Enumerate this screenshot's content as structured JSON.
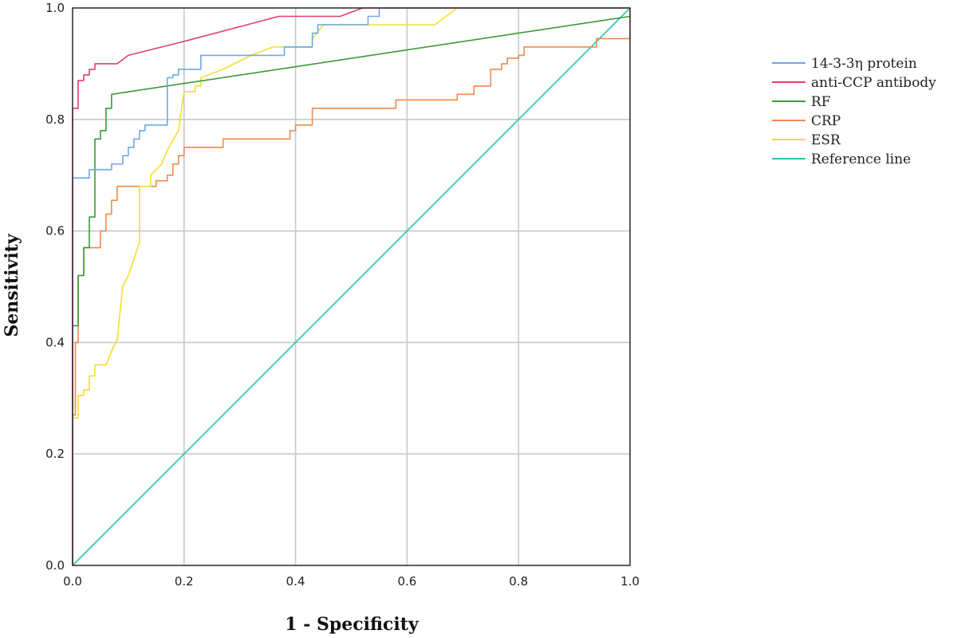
{
  "chart_data": {
    "type": "line",
    "title": "",
    "xlabel": "1 - Specificity",
    "ylabel": "Sensitivity",
    "xlim": [
      0,
      1
    ],
    "ylim": [
      0,
      1
    ],
    "xticks": [
      "0.0",
      "0.2",
      "0.4",
      "0.6",
      "0.8",
      "1.0"
    ],
    "yticks": [
      "0.0",
      "0.2",
      "0.4",
      "0.6",
      "0.8",
      "1.0"
    ],
    "grid": true,
    "legend_position": "right",
    "series": [
      {
        "name": "14-3-3η protein",
        "color": "#6fa8e6",
        "points": [
          [
            0,
            0
          ],
          [
            0,
            0.695
          ],
          [
            0.03,
            0.695
          ],
          [
            0.03,
            0.71
          ],
          [
            0.07,
            0.71
          ],
          [
            0.07,
            0.72
          ],
          [
            0.09,
            0.72
          ],
          [
            0.09,
            0.735
          ],
          [
            0.1,
            0.735
          ],
          [
            0.1,
            0.75
          ],
          [
            0.11,
            0.75
          ],
          [
            0.11,
            0.765
          ],
          [
            0.12,
            0.765
          ],
          [
            0.12,
            0.78
          ],
          [
            0.13,
            0.78
          ],
          [
            0.13,
            0.79
          ],
          [
            0.17,
            0.79
          ],
          [
            0.17,
            0.875
          ],
          [
            0.18,
            0.875
          ],
          [
            0.18,
            0.88
          ],
          [
            0.19,
            0.88
          ],
          [
            0.19,
            0.89
          ],
          [
            0.23,
            0.89
          ],
          [
            0.23,
            0.915
          ],
          [
            0.38,
            0.915
          ],
          [
            0.38,
            0.93
          ],
          [
            0.43,
            0.93
          ],
          [
            0.43,
            0.955
          ],
          [
            0.44,
            0.955
          ],
          [
            0.44,
            0.97
          ],
          [
            0.53,
            0.97
          ],
          [
            0.53,
            0.985
          ],
          [
            0.55,
            0.985
          ],
          [
            0.55,
            1
          ],
          [
            1,
            1
          ]
        ]
      },
      {
        "name": "anti-CCP antibody",
        "color": "#e0406a",
        "points": [
          [
            0,
            0
          ],
          [
            0,
            0.82
          ],
          [
            0.01,
            0.82
          ],
          [
            0.01,
            0.87
          ],
          [
            0.02,
            0.87
          ],
          [
            0.02,
            0.88
          ],
          [
            0.03,
            0.88
          ],
          [
            0.03,
            0.89
          ],
          [
            0.04,
            0.89
          ],
          [
            0.04,
            0.9
          ],
          [
            0.08,
            0.9
          ],
          [
            0.1,
            0.915
          ],
          [
            0.2,
            0.94
          ],
          [
            0.37,
            0.985
          ],
          [
            0.48,
            0.985
          ],
          [
            0.52,
            1
          ],
          [
            1,
            1
          ]
        ]
      },
      {
        "name": "RF",
        "color": "#3c9a3c",
        "points": [
          [
            0,
            0
          ],
          [
            0,
            0.43
          ],
          [
            0.01,
            0.43
          ],
          [
            0.01,
            0.52
          ],
          [
            0.02,
            0.52
          ],
          [
            0.02,
            0.57
          ],
          [
            0.03,
            0.57
          ],
          [
            0.03,
            0.625
          ],
          [
            0.04,
            0.625
          ],
          [
            0.04,
            0.765
          ],
          [
            0.05,
            0.765
          ],
          [
            0.05,
            0.78
          ],
          [
            0.06,
            0.78
          ],
          [
            0.06,
            0.82
          ],
          [
            0.07,
            0.82
          ],
          [
            0.07,
            0.845
          ],
          [
            1,
            0.985
          ]
        ]
      },
      {
        "name": "CRP",
        "color": "#f08a4b",
        "points": [
          [
            0,
            0
          ],
          [
            0,
            0.27
          ],
          [
            0.005,
            0.27
          ],
          [
            0.005,
            0.4
          ],
          [
            0.01,
            0.4
          ],
          [
            0.01,
            0.52
          ],
          [
            0.02,
            0.52
          ],
          [
            0.02,
            0.57
          ],
          [
            0.05,
            0.57
          ],
          [
            0.05,
            0.6
          ],
          [
            0.06,
            0.6
          ],
          [
            0.06,
            0.63
          ],
          [
            0.07,
            0.63
          ],
          [
            0.07,
            0.655
          ],
          [
            0.08,
            0.655
          ],
          [
            0.08,
            0.68
          ],
          [
            0.15,
            0.68
          ],
          [
            0.15,
            0.69
          ],
          [
            0.17,
            0.69
          ],
          [
            0.17,
            0.7
          ],
          [
            0.18,
            0.7
          ],
          [
            0.18,
            0.72
          ],
          [
            0.19,
            0.72
          ],
          [
            0.19,
            0.735
          ],
          [
            0.2,
            0.735
          ],
          [
            0.2,
            0.75
          ],
          [
            0.27,
            0.75
          ],
          [
            0.27,
            0.765
          ],
          [
            0.39,
            0.765
          ],
          [
            0.39,
            0.78
          ],
          [
            0.4,
            0.78
          ],
          [
            0.4,
            0.79
          ],
          [
            0.43,
            0.79
          ],
          [
            0.43,
            0.82
          ],
          [
            0.58,
            0.82
          ],
          [
            0.58,
            0.835
          ],
          [
            0.69,
            0.835
          ],
          [
            0.69,
            0.845
          ],
          [
            0.72,
            0.845
          ],
          [
            0.72,
            0.86
          ],
          [
            0.75,
            0.86
          ],
          [
            0.75,
            0.89
          ],
          [
            0.77,
            0.89
          ],
          [
            0.77,
            0.9
          ],
          [
            0.78,
            0.9
          ],
          [
            0.78,
            0.91
          ],
          [
            0.8,
            0.91
          ],
          [
            0.8,
            0.915
          ],
          [
            0.81,
            0.915
          ],
          [
            0.81,
            0.93
          ],
          [
            0.94,
            0.93
          ],
          [
            0.94,
            0.945
          ],
          [
            1,
            0.945
          ],
          [
            1,
            1
          ]
        ]
      },
      {
        "name": "ESR",
        "color": "#f0e030",
        "points": [
          [
            0,
            0
          ],
          [
            0,
            0.265
          ],
          [
            0.01,
            0.265
          ],
          [
            0.01,
            0.305
          ],
          [
            0.02,
            0.305
          ],
          [
            0.02,
            0.315
          ],
          [
            0.03,
            0.315
          ],
          [
            0.03,
            0.34
          ],
          [
            0.04,
            0.34
          ],
          [
            0.04,
            0.36
          ],
          [
            0.06,
            0.36
          ],
          [
            0.07,
            0.385
          ],
          [
            0.08,
            0.405
          ],
          [
            0.09,
            0.5
          ],
          [
            0.1,
            0.52
          ],
          [
            0.11,
            0.55
          ],
          [
            0.12,
            0.58
          ],
          [
            0.12,
            0.68
          ],
          [
            0.14,
            0.68
          ],
          [
            0.14,
            0.7
          ],
          [
            0.16,
            0.72
          ],
          [
            0.17,
            0.745
          ],
          [
            0.19,
            0.78
          ],
          [
            0.2,
            0.85
          ],
          [
            0.22,
            0.85
          ],
          [
            0.22,
            0.86
          ],
          [
            0.23,
            0.86
          ],
          [
            0.23,
            0.875
          ],
          [
            0.27,
            0.89
          ],
          [
            0.32,
            0.915
          ],
          [
            0.36,
            0.93
          ],
          [
            0.43,
            0.93
          ],
          [
            0.43,
            0.945
          ],
          [
            0.45,
            0.97
          ],
          [
            0.65,
            0.97
          ],
          [
            0.69,
            1
          ],
          [
            1,
            1
          ]
        ]
      },
      {
        "name": "Reference line",
        "color": "#30c0b0",
        "points": [
          [
            0,
            0
          ],
          [
            1,
            1
          ]
        ]
      }
    ]
  }
}
